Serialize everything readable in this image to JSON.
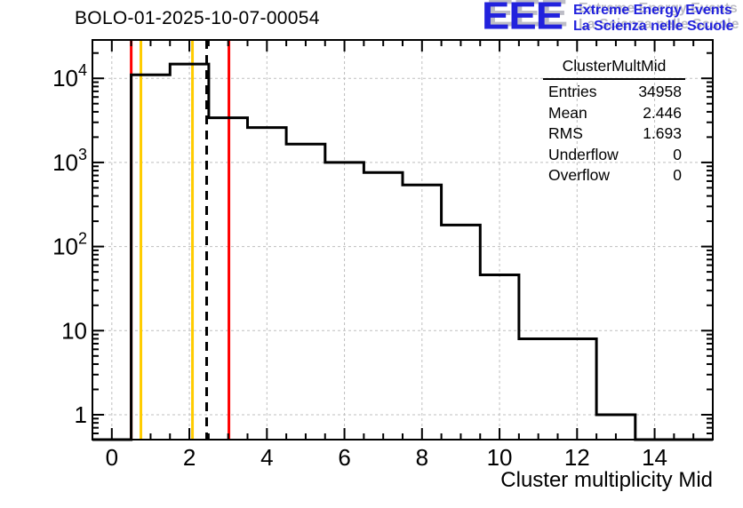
{
  "header": {
    "title": "BOLO-01-2025-10-07-00054"
  },
  "logo": {
    "acronym": "EEE",
    "line1": "Extreme Energy Events",
    "line2": "La Scienza nelle Scuole",
    "color": "#2222DD",
    "shadow_color": "#BDBDC6"
  },
  "stats": {
    "header": "ClusterMultMid",
    "rows": [
      {
        "label": "Entries",
        "value": "34958"
      },
      {
        "label": "Mean",
        "value": "2.446"
      },
      {
        "label": "RMS",
        "value": "1.693"
      },
      {
        "label": "Underflow",
        "value": "0"
      },
      {
        "label": "Overflow",
        "value": "0"
      }
    ]
  },
  "chart_data": {
    "type": "bar",
    "title": "BOLO-01-2025-10-07-00054",
    "xlabel": "Cluster multiplicity Mid",
    "ylabel": "",
    "y_scale": "log",
    "x_range": [
      -0.5,
      15.5
    ],
    "y_range_log": [
      0.506,
      28600
    ],
    "bin_centers": [
      0,
      1,
      2,
      3,
      4,
      5,
      6,
      7,
      8,
      9,
      10,
      11,
      12,
      13,
      14,
      15
    ],
    "values": [
      0,
      11000,
      14800,
      3400,
      2600,
      1650,
      1000,
      760,
      540,
      180,
      46,
      8,
      8,
      1,
      0,
      0
    ],
    "xticks": [
      0,
      2,
      4,
      6,
      8,
      10,
      12,
      14
    ],
    "yticks": [
      {
        "value": 1,
        "base": "1",
        "exp": ""
      },
      {
        "value": 10,
        "base": "10",
        "exp": ""
      },
      {
        "value": 100,
        "base": "10",
        "exp": "2"
      },
      {
        "value": 1000,
        "base": "10",
        "exp": "3"
      },
      {
        "value": 10000,
        "base": "10",
        "exp": "4"
      }
    ],
    "grid": "dashed",
    "grid_color": "#BFBFBF",
    "hist_color": "#000000",
    "frame_color": "#000000",
    "marker_lines": [
      {
        "x": 0.5,
        "color": "#FF0000",
        "style": "solid",
        "name": "red-low-threshold-line"
      },
      {
        "x": 0.75,
        "color": "#FFCC00",
        "style": "solid",
        "name": "yellow-low-threshold-line"
      },
      {
        "x": 2.08,
        "color": "#FFCC00",
        "style": "solid",
        "name": "yellow-high-threshold-line"
      },
      {
        "x": 2.446,
        "color": "#000000",
        "style": "dashed",
        "name": "mean-dashed-line"
      },
      {
        "x": 3.02,
        "color": "#FF0000",
        "style": "solid",
        "name": "red-high-threshold-line"
      }
    ]
  }
}
